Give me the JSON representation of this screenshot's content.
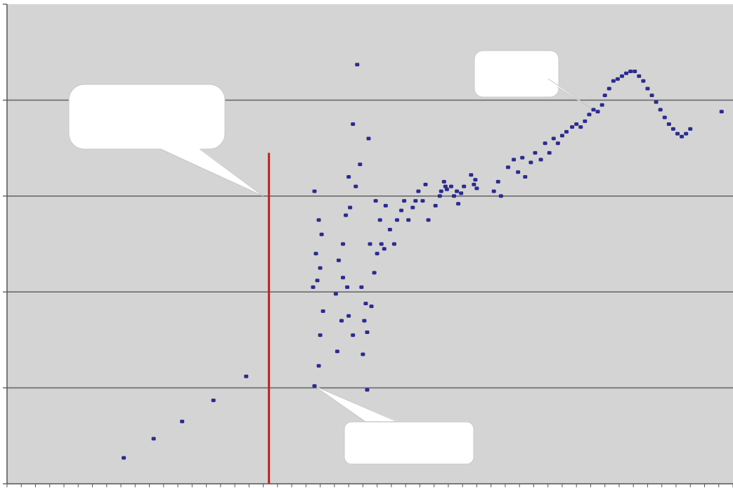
{
  "chart_data": {
    "type": "scatter",
    "title": "",
    "xlabel": "",
    "ylabel": "",
    "xlim": [
      0,
      51
    ],
    "ylim": [
      0,
      5
    ],
    "grid": true,
    "gridlines_y": [
      1,
      2,
      3,
      4
    ],
    "x_tick_count": 51,
    "colors": {
      "plot_background": "#d4d4d4",
      "gridline": "#6a6a6a",
      "axis": "#555555",
      "marker": "#2b2b8f",
      "vertical_marker_line": "#e01010",
      "callout_fill": "#ffffff",
      "callout_stroke": "#c8c8c8"
    },
    "vertical_marker": {
      "x": 18.4,
      "y_from": 0,
      "y_to": 3.45
    },
    "callouts": [
      {
        "name": "callout-left-threshold",
        "text": "",
        "tip": [
          18.0,
          3.0
        ]
      },
      {
        "name": "callout-peak",
        "text": "",
        "tip": [
          41.4,
          3.88
        ]
      },
      {
        "name": "callout-rise-start",
        "text": "",
        "tip": [
          21.6,
          1.02
        ]
      }
    ],
    "series": [
      {
        "values": [
          [
            8.2,
            0.27
          ],
          [
            10.3,
            0.47
          ],
          [
            12.3,
            0.65
          ],
          [
            14.5,
            0.87
          ],
          [
            16.8,
            1.12
          ],
          [
            21.6,
            1.02
          ],
          [
            21.9,
            1.23
          ],
          [
            22.0,
            1.55
          ],
          [
            22.2,
            1.8
          ],
          [
            21.5,
            2.05
          ],
          [
            21.8,
            2.12
          ],
          [
            22.0,
            2.25
          ],
          [
            21.7,
            2.4
          ],
          [
            22.1,
            2.6
          ],
          [
            21.9,
            2.75
          ],
          [
            21.6,
            3.05
          ],
          [
            23.2,
            1.38
          ],
          [
            23.5,
            1.7
          ],
          [
            23.1,
            1.98
          ],
          [
            23.6,
            2.15
          ],
          [
            23.9,
            2.05
          ],
          [
            24.0,
            1.75
          ],
          [
            24.3,
            1.55
          ],
          [
            23.3,
            2.33
          ],
          [
            23.6,
            2.5
          ],
          [
            23.8,
            2.8
          ],
          [
            24.1,
            2.88
          ],
          [
            24.0,
            3.2
          ],
          [
            24.5,
            3.1
          ],
          [
            24.8,
            3.33
          ],
          [
            24.3,
            3.75
          ],
          [
            24.6,
            4.37
          ],
          [
            24.9,
            2.05
          ],
          [
            25.1,
            1.7
          ],
          [
            25.3,
            1.58
          ],
          [
            25.0,
            1.35
          ],
          [
            25.3,
            0.98
          ],
          [
            25.6,
            1.85
          ],
          [
            25.8,
            2.2
          ],
          [
            25.5,
            2.5
          ],
          [
            25.9,
            2.95
          ],
          [
            25.4,
            3.6
          ],
          [
            25.2,
            1.88
          ],
          [
            26.0,
            2.4
          ],
          [
            26.3,
            2.5
          ],
          [
            26.6,
            2.9
          ],
          [
            26.2,
            2.75
          ],
          [
            26.9,
            2.65
          ],
          [
            26.5,
            2.45
          ],
          [
            27.2,
            2.5
          ],
          [
            27.4,
            2.75
          ],
          [
            27.7,
            2.85
          ],
          [
            27.9,
            2.95
          ],
          [
            28.2,
            2.75
          ],
          [
            28.5,
            2.88
          ],
          [
            28.7,
            2.95
          ],
          [
            28.9,
            3.05
          ],
          [
            29.2,
            2.95
          ],
          [
            29.4,
            3.12
          ],
          [
            29.6,
            2.75
          ],
          [
            30.1,
            2.9
          ],
          [
            30.4,
            3.0
          ],
          [
            30.7,
            3.15
          ],
          [
            30.9,
            3.07
          ],
          [
            31.2,
            3.1
          ],
          [
            31.6,
            3.05
          ],
          [
            31.9,
            3.03
          ],
          [
            32.1,
            3.1
          ],
          [
            30.8,
            3.1
          ],
          [
            30.5,
            3.05
          ],
          [
            31.4,
            3.0
          ],
          [
            31.7,
            2.92
          ],
          [
            32.6,
            3.22
          ],
          [
            32.8,
            3.12
          ],
          [
            33.0,
            3.08
          ],
          [
            32.9,
            3.17
          ],
          [
            34.2,
            3.05
          ],
          [
            34.5,
            3.15
          ],
          [
            34.7,
            3.0
          ],
          [
            35.2,
            3.3
          ],
          [
            35.6,
            3.38
          ],
          [
            35.9,
            3.25
          ],
          [
            36.2,
            3.4
          ],
          [
            36.4,
            3.2
          ],
          [
            36.8,
            3.35
          ],
          [
            37.1,
            3.45
          ],
          [
            37.5,
            3.38
          ],
          [
            37.8,
            3.55
          ],
          [
            38.1,
            3.45
          ],
          [
            38.4,
            3.6
          ],
          [
            38.7,
            3.55
          ],
          [
            39.0,
            3.63
          ],
          [
            39.3,
            3.67
          ],
          [
            39.7,
            3.72
          ],
          [
            40.0,
            3.75
          ],
          [
            40.3,
            3.72
          ],
          [
            40.6,
            3.78
          ],
          [
            40.9,
            3.85
          ],
          [
            41.2,
            3.9
          ],
          [
            41.5,
            3.88
          ],
          [
            41.8,
            3.95
          ],
          [
            42.0,
            4.05
          ],
          [
            42.3,
            4.12
          ],
          [
            42.6,
            4.2
          ],
          [
            42.9,
            4.22
          ],
          [
            43.2,
            4.25
          ],
          [
            43.5,
            4.28
          ],
          [
            43.8,
            4.3
          ],
          [
            44.1,
            4.3
          ],
          [
            44.4,
            4.25
          ],
          [
            44.7,
            4.2
          ],
          [
            45.0,
            4.12
          ],
          [
            45.3,
            4.05
          ],
          [
            45.6,
            3.98
          ],
          [
            45.9,
            3.9
          ],
          [
            46.2,
            3.82
          ],
          [
            46.5,
            3.75
          ],
          [
            46.8,
            3.7
          ],
          [
            47.1,
            3.65
          ],
          [
            47.4,
            3.62
          ],
          [
            47.7,
            3.65
          ],
          [
            48.0,
            3.7
          ],
          [
            50.2,
            3.88
          ]
        ]
      }
    ]
  }
}
